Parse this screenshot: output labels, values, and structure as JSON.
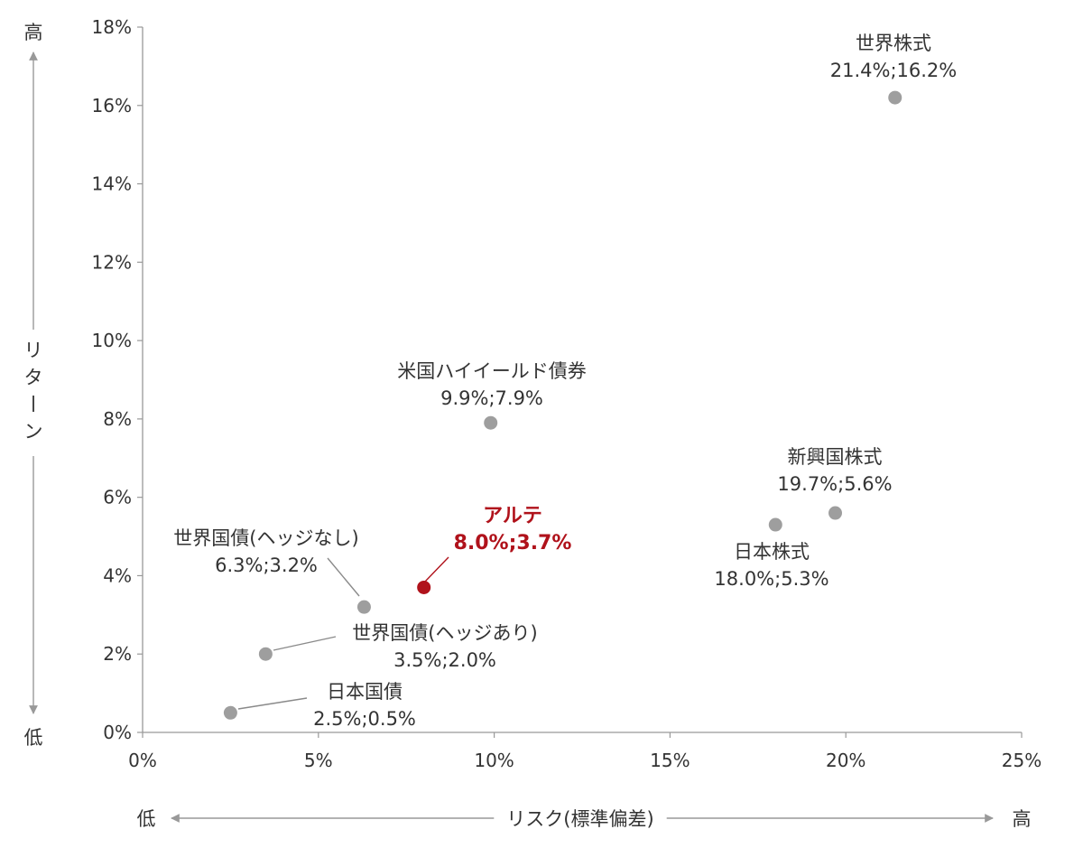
{
  "chart_data": {
    "type": "scatter",
    "title": "",
    "xlabel": "リスク(標準偏差)",
    "ylabel": "リターン",
    "xlim": [
      0,
      25
    ],
    "ylim": [
      0,
      18
    ],
    "x_ticks": [
      "0%",
      "5%",
      "10%",
      "15%",
      "20%",
      "25%"
    ],
    "y_ticks": [
      "0%",
      "2%",
      "4%",
      "6%",
      "8%",
      "10%",
      "12%",
      "14%",
      "16%",
      "18%"
    ],
    "x_low_label": "低",
    "x_high_label": "高",
    "y_low_label": "低",
    "y_high_label": "高",
    "grid": false,
    "colors": {
      "point": "#9e9e9e",
      "highlight": "#b0121b",
      "axis": "#999999",
      "text": "#333333"
    },
    "points": [
      {
        "name": "世界株式",
        "value_label": "21.4%;16.2%",
        "x": 21.4,
        "y": 16.2,
        "highlight": false
      },
      {
        "name": "米国ハイイールド債券",
        "value_label": "9.9%;7.9%",
        "x": 9.9,
        "y": 7.9,
        "highlight": false
      },
      {
        "name": "新興国株式",
        "value_label": "19.7%;5.6%",
        "x": 19.7,
        "y": 5.6,
        "highlight": false
      },
      {
        "name": "日本株式",
        "value_label": "18.0%;5.3%",
        "x": 18.0,
        "y": 5.3,
        "highlight": false
      },
      {
        "name": "アルテ",
        "value_label": "8.0%;3.7%",
        "x": 8.0,
        "y": 3.7,
        "highlight": true
      },
      {
        "name": "世界国債(ヘッジなし)",
        "value_label": "6.3%;3.2%",
        "x": 6.3,
        "y": 3.2,
        "highlight": false
      },
      {
        "name": "世界国債(ヘッジあり)",
        "value_label": "3.5%;2.0%",
        "x": 3.5,
        "y": 2.0,
        "highlight": false
      },
      {
        "name": "日本国債",
        "value_label": "2.5%;0.5%",
        "x": 2.5,
        "y": 0.5,
        "highlight": false
      }
    ]
  }
}
